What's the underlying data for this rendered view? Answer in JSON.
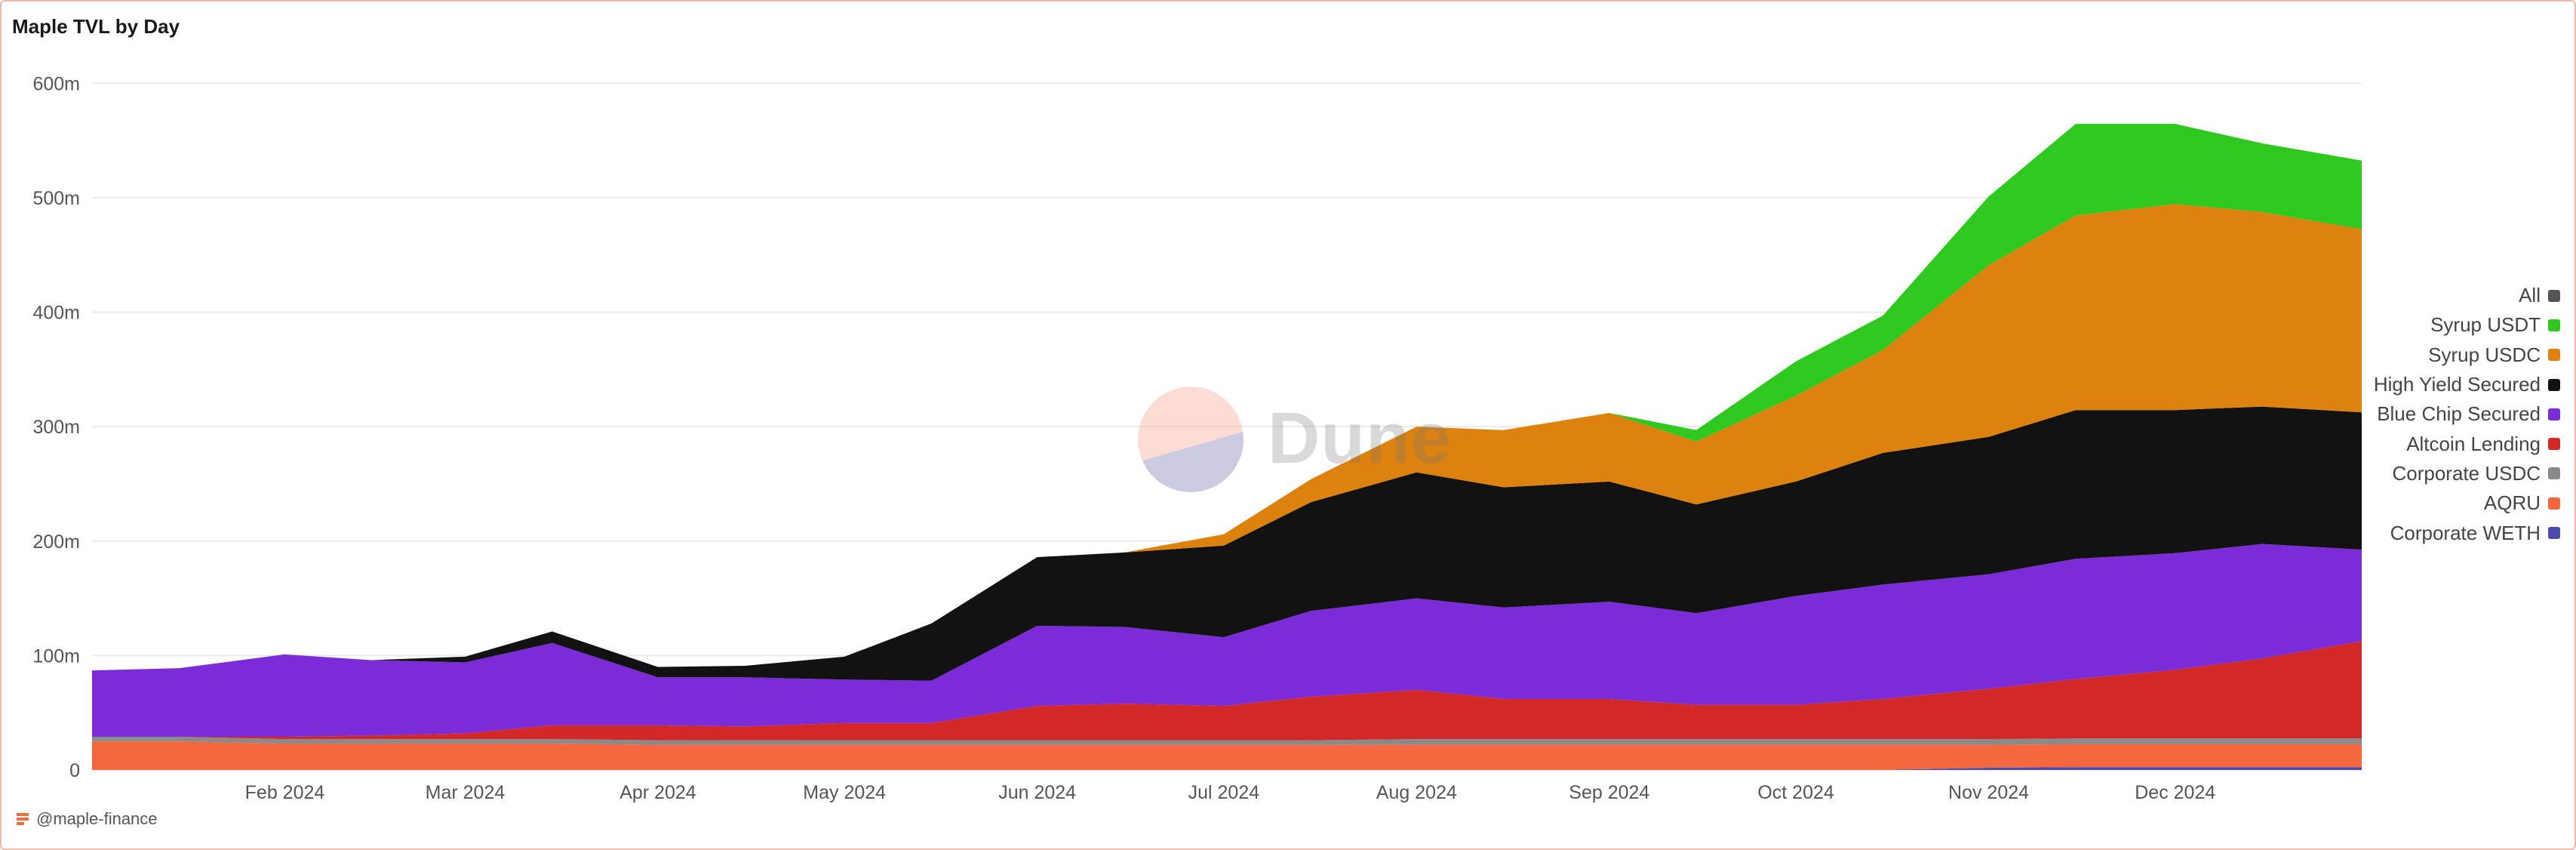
{
  "header": {
    "title": "Maple TVL by Day"
  },
  "attribution": {
    "handle": "@maple-finance"
  },
  "watermark": {
    "text": "Dune"
  },
  "chart_data": {
    "type": "area",
    "stacked": true,
    "title": "Maple TVL by Day",
    "xlabel": "",
    "ylabel": "",
    "ylim": [
      0,
      620000000
    ],
    "grid": true,
    "legend_position": "right",
    "y_ticks": [
      {
        "value": 0,
        "label": "0"
      },
      {
        "value": 100000000,
        "label": "100m"
      },
      {
        "value": 200000000,
        "label": "200m"
      },
      {
        "value": 300000000,
        "label": "300m"
      },
      {
        "value": 400000000,
        "label": "400m"
      },
      {
        "value": 500000000,
        "label": "500m"
      },
      {
        "value": 600000000,
        "label": "600m"
      }
    ],
    "x_ticks": [
      {
        "value": "2024-02-01",
        "label": "Feb 2024"
      },
      {
        "value": "2024-03-01",
        "label": "Mar 2024"
      },
      {
        "value": "2024-04-01",
        "label": "Apr 2024"
      },
      {
        "value": "2024-05-01",
        "label": "May 2024"
      },
      {
        "value": "2024-06-01",
        "label": "Jun 2024"
      },
      {
        "value": "2024-07-01",
        "label": "Jul 2024"
      },
      {
        "value": "2024-08-01",
        "label": "Aug 2024"
      },
      {
        "value": "2024-09-01",
        "label": "Sep 2024"
      },
      {
        "value": "2024-10-01",
        "label": "Oct 2024"
      },
      {
        "value": "2024-11-01",
        "label": "Nov 2024"
      },
      {
        "value": "2024-12-01",
        "label": "Dec 2024"
      }
    ],
    "x": [
      "2024-01-01",
      "2024-01-15",
      "2024-02-01",
      "2024-02-15",
      "2024-03-01",
      "2024-03-15",
      "2024-04-01",
      "2024-04-15",
      "2024-05-01",
      "2024-05-15",
      "2024-06-01",
      "2024-06-15",
      "2024-07-01",
      "2024-07-15",
      "2024-08-01",
      "2024-08-15",
      "2024-09-01",
      "2024-09-15",
      "2024-10-01",
      "2024-10-15",
      "2024-11-01",
      "2024-11-15",
      "2024-12-01",
      "2024-12-15",
      "2024-12-31"
    ],
    "legend": [
      {
        "name": "All",
        "color": "#555555"
      },
      {
        "name": "Syrup USDT",
        "color": "#2ec81e"
      },
      {
        "name": "Syrup USDC",
        "color": "#dd820e"
      },
      {
        "name": "High Yield Secured",
        "color": "#121212"
      },
      {
        "name": "Blue Chip Secured",
        "color": "#7b2bd8"
      },
      {
        "name": "Altcoin Lending",
        "color": "#d22828"
      },
      {
        "name": "Corporate USDC",
        "color": "#8a8a8a"
      },
      {
        "name": "AQRU",
        "color": "#f5673e"
      },
      {
        "name": "Corporate WETH",
        "color": "#4b4baa"
      }
    ],
    "series": [
      {
        "name": "Corporate WETH",
        "color": "#4b4baa",
        "values": [
          0,
          0,
          0,
          0,
          0,
          0,
          0,
          0,
          0,
          0,
          0,
          0,
          0,
          0,
          0,
          0,
          0,
          0,
          0,
          0,
          2000000,
          2500000,
          2500000,
          2500000,
          2500000
        ]
      },
      {
        "name": "AQRU",
        "color": "#f5673e",
        "values": [
          25000000,
          25000000,
          23000000,
          23000000,
          23000000,
          23000000,
          22000000,
          22000000,
          22000000,
          22000000,
          22000000,
          22000000,
          22000000,
          22000000,
          22000000,
          22000000,
          22000000,
          22000000,
          22000000,
          22000000,
          20000000,
          20000000,
          20000000,
          20000000,
          20000000
        ]
      },
      {
        "name": "Corporate USDC",
        "color": "#8a8a8a",
        "values": [
          4000000,
          4000000,
          4000000,
          4000000,
          4000000,
          4000000,
          4000000,
          4000000,
          4000000,
          4000000,
          4000000,
          4000000,
          4000000,
          4000000,
          5000000,
          5000000,
          5000000,
          5000000,
          5000000,
          5000000,
          5000000,
          5000000,
          5000000,
          5000000,
          5000000
        ]
      },
      {
        "name": "Altcoin Lending",
        "color": "#d22828",
        "values": [
          0,
          0,
          2000000,
          3000000,
          5000000,
          12000000,
          13000000,
          12000000,
          15000000,
          15000000,
          30000000,
          32000000,
          30000000,
          38000000,
          43000000,
          35000000,
          35000000,
          30000000,
          30000000,
          35000000,
          44000000,
          52000000,
          60000000,
          70000000,
          85000000
        ]
      },
      {
        "name": "Blue Chip Secured",
        "color": "#7b2bd8",
        "values": [
          58000000,
          60000000,
          72000000,
          66000000,
          62000000,
          72000000,
          42000000,
          43000000,
          38000000,
          37000000,
          70000000,
          67000000,
          60000000,
          75000000,
          80000000,
          80000000,
          85000000,
          80000000,
          95000000,
          100000000,
          100000000,
          105000000,
          102000000,
          100000000,
          80000000
        ]
      },
      {
        "name": "High Yield Secured",
        "color": "#121212",
        "values": [
          0,
          0,
          0,
          0,
          5000000,
          10000000,
          9000000,
          10000000,
          20000000,
          50000000,
          60000000,
          65000000,
          80000000,
          95000000,
          110000000,
          105000000,
          105000000,
          95000000,
          100000000,
          115000000,
          120000000,
          130000000,
          125000000,
          120000000,
          120000000
        ]
      },
      {
        "name": "Syrup USDC",
        "color": "#dd820e",
        "values": [
          0,
          0,
          0,
          0,
          0,
          0,
          0,
          0,
          0,
          0,
          0,
          0,
          10000000,
          20000000,
          40000000,
          50000000,
          60000000,
          55000000,
          75000000,
          90000000,
          150000000,
          170000000,
          180000000,
          170000000,
          160000000
        ]
      },
      {
        "name": "Syrup USDT",
        "color": "#2ec81e",
        "values": [
          0,
          0,
          0,
          0,
          0,
          0,
          0,
          0,
          0,
          0,
          0,
          0,
          0,
          0,
          0,
          0,
          0,
          10000000,
          30000000,
          30000000,
          60000000,
          80000000,
          70000000,
          60000000,
          60000000
        ]
      }
    ]
  }
}
